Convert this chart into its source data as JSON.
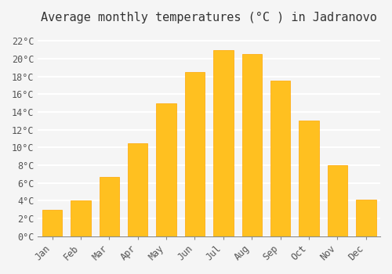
{
  "title": "Average monthly temperatures (°C ) in Jadranovo",
  "months": [
    "Jan",
    "Feb",
    "Mar",
    "Apr",
    "May",
    "Jun",
    "Jul",
    "Aug",
    "Sep",
    "Oct",
    "Nov",
    "Dec"
  ],
  "values": [
    3.0,
    4.0,
    6.7,
    10.5,
    15.0,
    18.5,
    21.0,
    20.5,
    17.5,
    13.0,
    8.0,
    4.1
  ],
  "bar_color_main": "#FFC020",
  "bar_color_edge": "#FFA500",
  "background_color": "#F5F5F5",
  "grid_color": "#FFFFFF",
  "ylim": [
    0,
    23
  ],
  "yticks": [
    0,
    2,
    4,
    6,
    8,
    10,
    12,
    14,
    16,
    18,
    20,
    22
  ],
  "ytick_labels": [
    "0°C",
    "2°C",
    "4°C",
    "6°C",
    "8°C",
    "10°C",
    "12°C",
    "14°C",
    "16°C",
    "18°C",
    "20°C",
    "22°C"
  ],
  "title_fontsize": 11,
  "tick_fontsize": 8.5,
  "font_family": "monospace"
}
